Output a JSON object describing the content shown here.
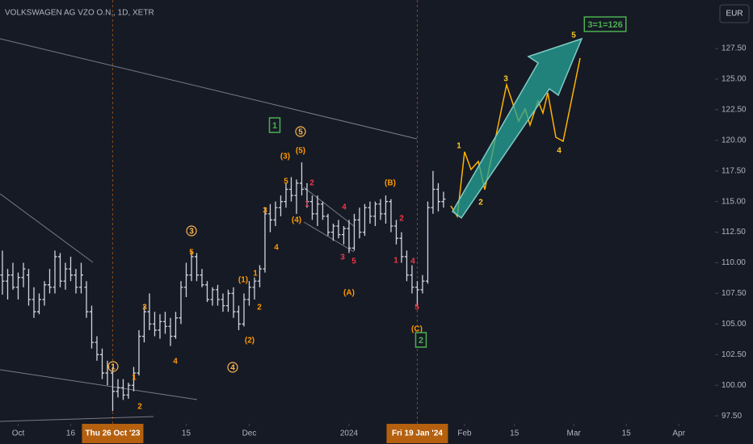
{
  "chart_data": {
    "type": "ohlc",
    "title": "VOLKSWAGEN AG VZO O.N., 1D, XETR",
    "currency": "EUR",
    "color": "#d1d4dc",
    "xlim": [
      -0.46,
      135.7
    ],
    "ylim": [
      96.85,
      131.46
    ],
    "yticks": [
      {
        "value": 97.5,
        "label": "97.50"
      },
      {
        "value": 100,
        "label": "100.00"
      },
      {
        "value": 102.5,
        "label": "102.50"
      },
      {
        "value": 105,
        "label": "105.00"
      },
      {
        "value": 107.5,
        "label": "107.50"
      },
      {
        "value": 110,
        "label": "110.00"
      },
      {
        "value": 112.5,
        "label": "112.50"
      },
      {
        "value": 115,
        "label": "115.00"
      },
      {
        "value": 117.5,
        "label": "117.50"
      },
      {
        "value": 120,
        "label": "120.00"
      },
      {
        "value": 122.5,
        "label": "122.50"
      },
      {
        "value": 125,
        "label": "125.00"
      },
      {
        "value": 127.5,
        "label": "127.50"
      }
    ],
    "xticks": [
      {
        "value": 3,
        "label": "Oct"
      },
      {
        "value": 13,
        "label": "16"
      },
      {
        "value": 35,
        "label": "15"
      },
      {
        "value": 47,
        "label": "Dec"
      },
      {
        "value": 66,
        "label": "2024"
      },
      {
        "value": 88,
        "label": "Feb"
      },
      {
        "value": 97.5,
        "label": "15"
      },
      {
        "value": 108.8,
        "label": "Mar"
      },
      {
        "value": 118.8,
        "label": "15"
      },
      {
        "value": 128.8,
        "label": "Apr"
      }
    ],
    "markers": [
      {
        "x": 21,
        "label": "Thu 26 Oct '23"
      },
      {
        "x": 79,
        "label": "Fri 19 Jan '24"
      }
    ],
    "bars": [
      [
        109,
        111,
        107.4,
        108.5
      ],
      [
        108.5,
        109.5,
        107,
        109
      ],
      [
        109,
        110,
        107.8,
        108
      ],
      [
        108,
        109.2,
        107,
        108.8
      ],
      [
        108.8,
        110,
        108,
        109.5
      ],
      [
        109,
        109.5,
        106.5,
        107
      ],
      [
        107,
        108,
        105.5,
        106
      ],
      [
        106,
        107.5,
        105.8,
        107
      ],
      [
        107,
        108.5,
        106.5,
        108.2
      ],
      [
        108.2,
        109.5,
        107.5,
        108
      ],
      [
        108,
        111,
        107.5,
        110.5
      ],
      [
        110.5,
        110.8,
        108,
        108.5
      ],
      [
        108.5,
        110,
        107.8,
        109.5
      ],
      [
        109.5,
        110.5,
        108.5,
        109
      ],
      [
        109,
        109.5,
        107.5,
        108
      ],
      [
        108,
        110,
        107.5,
        109
      ],
      [
        108,
        108.5,
        105.5,
        106
      ],
      [
        106,
        106.5,
        103,
        103.5
      ],
      [
        103.5,
        104,
        102,
        102.5
      ],
      [
        102.5,
        103,
        100.5,
        101
      ],
      [
        101,
        102,
        100,
        101.5
      ],
      [
        101,
        101.5,
        97.9,
        99.5
      ],
      [
        99.5,
        100.5,
        99,
        99.8
      ],
      [
        99.8,
        100.5,
        98.8,
        99.2
      ],
      [
        99.2,
        100.2,
        98.9,
        100
      ],
      [
        100,
        101.5,
        99.5,
        101
      ],
      [
        101,
        104.5,
        100.8,
        104
      ],
      [
        104,
        106.5,
        103.5,
        106
      ],
      [
        106,
        107.5,
        104.5,
        105
      ],
      [
        105,
        106,
        104,
        104.5
      ],
      [
        104.5,
        105.8,
        103.8,
        105.2
      ],
      [
        105.2,
        106,
        104.2,
        104.8
      ],
      [
        104.8,
        105.5,
        103.2,
        104
      ],
      [
        104,
        106,
        103.8,
        105.5
      ],
      [
        105.5,
        108.5,
        105,
        108
      ],
      [
        108,
        110,
        107.2,
        109
      ],
      [
        109,
        111,
        108.5,
        110.5
      ],
      [
        110.5,
        110.8,
        108.5,
        109
      ],
      [
        109,
        109.5,
        108,
        108.2
      ],
      [
        108.2,
        108.5,
        106.8,
        107
      ],
      [
        107,
        108,
        106.5,
        107.8
      ],
      [
        107.8,
        108.2,
        106.5,
        107
      ],
      [
        107,
        107.5,
        106,
        106.5
      ],
      [
        106.5,
        107.8,
        106,
        107.5
      ],
      [
        107.5,
        108,
        105.5,
        106
      ],
      [
        106,
        106.5,
        104.5,
        105
      ],
      [
        105,
        107.5,
        104.8,
        107
      ],
      [
        107,
        108.5,
        106.5,
        108
      ],
      [
        108,
        108.8,
        107,
        108.5
      ],
      [
        108.5,
        109.8,
        108,
        109.5
      ],
      [
        109.5,
        114.5,
        109.2,
        114
      ],
      [
        114,
        114.8,
        112.5,
        113.5
      ],
      [
        113.5,
        115,
        113,
        114.5
      ],
      [
        114.5,
        115.5,
        113.8,
        115
      ],
      [
        115,
        116.5,
        114.5,
        116
      ],
      [
        116,
        117,
        115,
        115.5
      ],
      [
        115.5,
        116.8,
        114,
        116.5
      ],
      [
        116.5,
        118.2,
        115.5,
        116
      ],
      [
        116,
        116.5,
        114.5,
        115
      ],
      [
        115,
        115.5,
        113.5,
        114
      ],
      [
        114,
        115.5,
        113,
        114.8
      ],
      [
        114.8,
        115,
        113.5,
        113.8
      ],
      [
        113.8,
        114,
        112.2,
        112.5
      ],
      [
        112.5,
        113.2,
        111.8,
        113
      ],
      [
        113,
        113.5,
        112,
        112.3
      ],
      [
        112.3,
        113,
        111.5,
        112.8
      ],
      [
        112.8,
        113.5,
        110.8,
        111.2
      ],
      [
        111.2,
        114,
        111,
        113.5
      ],
      [
        113.5,
        114.5,
        112,
        112.5
      ],
      [
        112.5,
        114.8,
        112.2,
        114.5
      ],
      [
        114.5,
        115,
        113.2,
        113.8
      ],
      [
        113.8,
        115,
        113,
        114.8
      ],
      [
        114.8,
        115.2,
        113.5,
        114
      ],
      [
        114,
        115.5,
        113.2,
        115
      ],
      [
        115,
        115.2,
        112.5,
        113
      ],
      [
        113,
        113.5,
        111.5,
        112
      ],
      [
        112,
        112.5,
        110,
        110.5
      ],
      [
        110.5,
        111,
        108.5,
        109
      ],
      [
        109,
        109.8,
        107.5,
        108
      ],
      [
        108,
        108.5,
        106.5,
        107.8
      ],
      [
        107.8,
        109,
        107.5,
        108.5
      ],
      [
        108.5,
        115,
        108.3,
        114.5
      ],
      [
        114.5,
        117.5,
        114,
        116
      ],
      [
        116,
        116.5,
        114.2,
        115
      ],
      [
        115,
        115.8,
        114.5,
        115.2
      ]
    ],
    "annotations": [
      {
        "text": "1",
        "color": "#ffb74d",
        "style": "circle"
      },
      {
        "text": "1",
        "color": "#ff9800"
      },
      {
        "text": "2",
        "color": "#ff9800"
      },
      {
        "text": "3",
        "color": "#ff9800"
      },
      {
        "text": "4",
        "color": "#ff9800"
      },
      {
        "text": "3",
        "color": "#ffb74d",
        "style": "circle"
      },
      {
        "text": "5",
        "color": "#ff9800"
      },
      {
        "text": "4",
        "color": "#ffb74d",
        "style": "circle"
      },
      {
        "text": "(1)",
        "color": "#ff9800"
      },
      {
        "text": "1",
        "color": "#ff9800"
      },
      {
        "text": "2",
        "color": "#ff9800"
      },
      {
        "text": "(2)",
        "color": "#ff9800"
      },
      {
        "text": "3",
        "color": "#ff9800"
      },
      {
        "text": "4",
        "color": "#ff9800"
      },
      {
        "text": "(3)",
        "color": "#ff9800"
      },
      {
        "text": "5",
        "color": "#ff9800"
      },
      {
        "text": "5",
        "color": "#ffb74d",
        "style": "circle"
      },
      {
        "text": "(5)",
        "color": "#ff9800"
      },
      {
        "text": "(4)",
        "color": "#ff9800"
      },
      {
        "text": "1",
        "color": "#4caf50",
        "style": "box"
      },
      {
        "text": "1",
        "color": "#f23645"
      },
      {
        "text": "2",
        "color": "#f23645"
      },
      {
        "text": "3",
        "color": "#f23645"
      },
      {
        "text": "4",
        "color": "#f23645"
      },
      {
        "text": "5",
        "color": "#f23645"
      },
      {
        "text": "(A)",
        "color": "#ff9800"
      },
      {
        "text": "(B)",
        "color": "#ff9800"
      },
      {
        "text": "1",
        "color": "#f23645"
      },
      {
        "text": "2",
        "color": "#f23645"
      },
      {
        "text": "4",
        "color": "#f23645"
      },
      {
        "text": "5",
        "color": "#f23645"
      },
      {
        "text": "(C)",
        "color": "#ff9800"
      },
      {
        "text": "2",
        "color": "#4caf50",
        "style": "box"
      },
      {
        "text": "1",
        "color": "#ffca28"
      },
      {
        "text": "2",
        "color": "#ffca28"
      },
      {
        "text": "3",
        "color": "#ffca28"
      },
      {
        "text": "4",
        "color": "#ffca28"
      },
      {
        "text": "5",
        "color": "#ffca28"
      },
      {
        "text": "3=1=126",
        "color": "#4caf50",
        "style": "box"
      }
    ]
  }
}
